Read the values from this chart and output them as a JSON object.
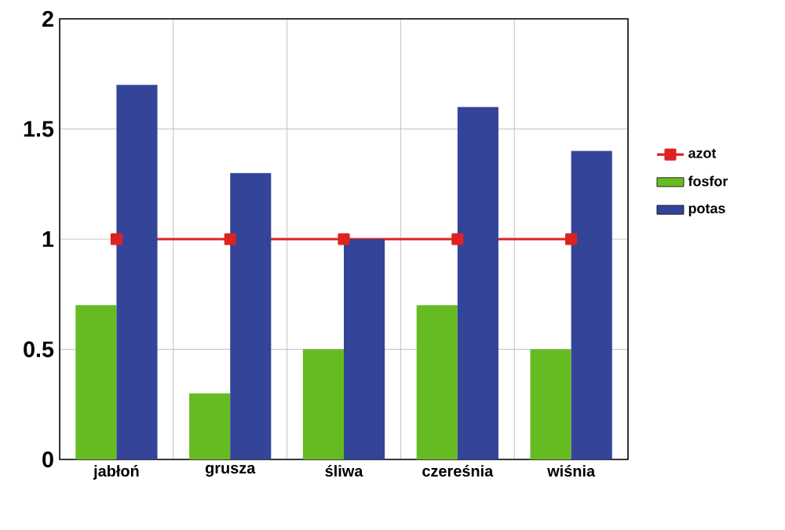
{
  "chart_data": {
    "type": "bar",
    "categories": [
      "jabłoń",
      "grusza",
      "śliwa",
      "czereśnia",
      "wiśnia"
    ],
    "series": [
      {
        "name": "azot",
        "type": "line",
        "color": "#dd2222",
        "values": [
          1,
          1,
          1,
          1,
          1
        ],
        "marker": "square"
      },
      {
        "name": "fosfor",
        "color": "#66bb22",
        "values": [
          0.7,
          0.3,
          0.5,
          0.7,
          0.5
        ]
      },
      {
        "name": "potas",
        "color": "#334499",
        "values": [
          1.7,
          1.3,
          1.0,
          1.6,
          1.4
        ]
      }
    ],
    "ylim": [
      0,
      2
    ],
    "yticks": [
      0,
      0.5,
      1,
      1.5,
      2
    ],
    "grid": true,
    "legend": "right"
  }
}
